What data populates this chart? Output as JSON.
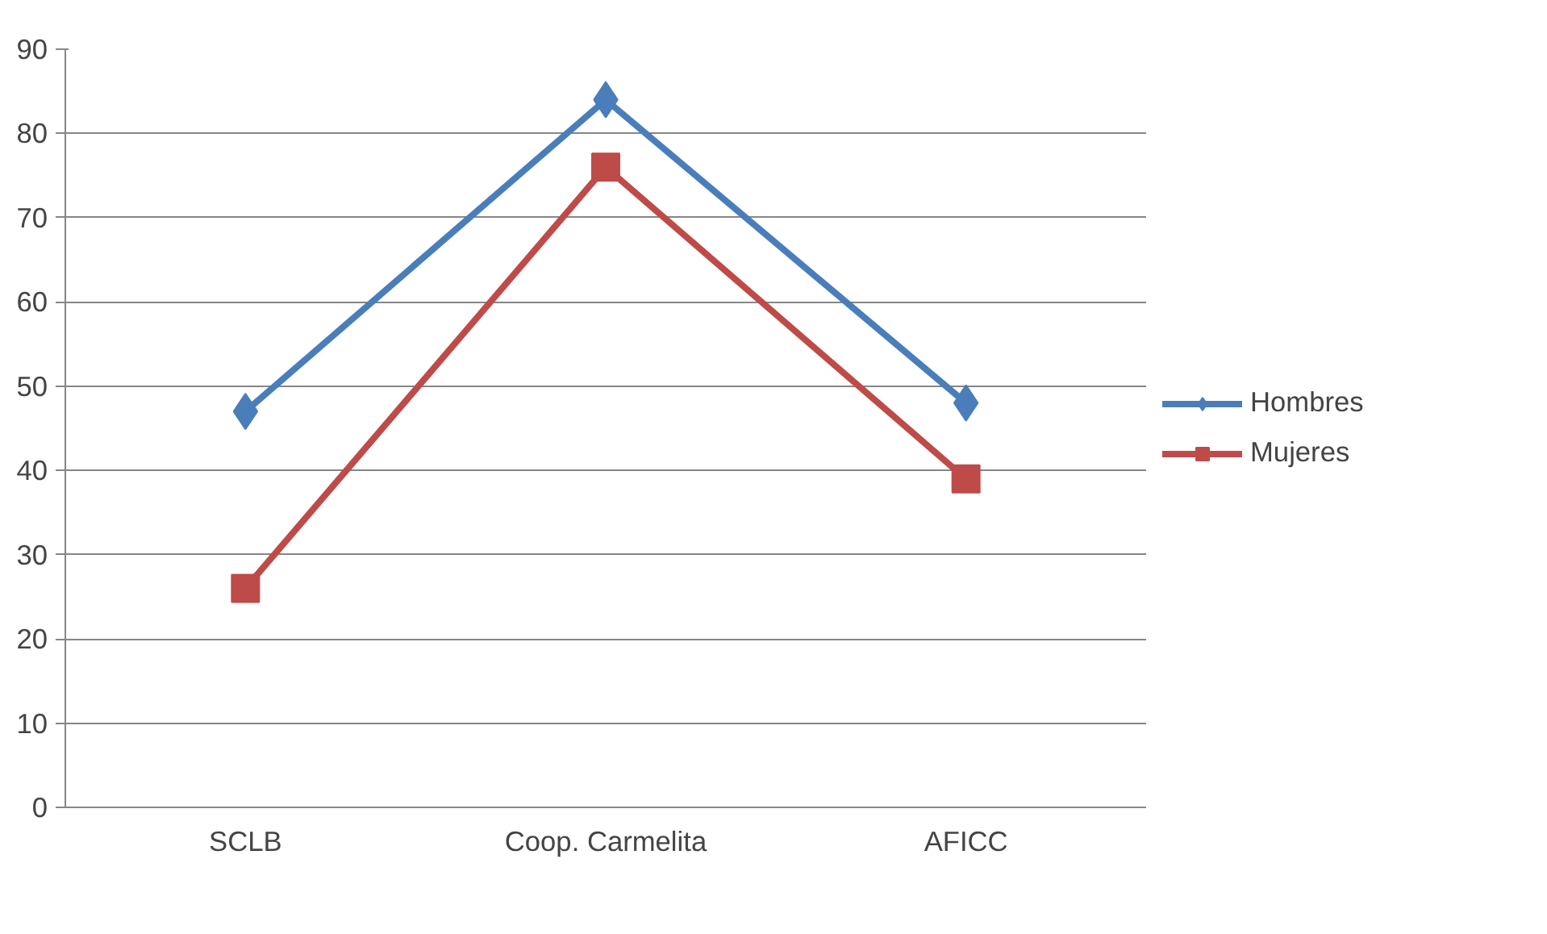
{
  "chart_data": {
    "type": "line",
    "categories": [
      "SCLB",
      "Coop. Carmelita",
      "AFICC"
    ],
    "series": [
      {
        "name": "Hombres",
        "color": "#4a7ebb",
        "values": [
          47,
          84,
          48
        ],
        "marker": "diamond"
      },
      {
        "name": "Mujeres",
        "color": "#be4b48",
        "values": [
          26,
          76,
          39
        ],
        "marker": "square"
      }
    ],
    "ylim": [
      0,
      90
    ],
    "yticks": [
      0,
      10,
      20,
      30,
      40,
      50,
      60,
      70,
      80,
      90
    ],
    "grid": "y",
    "legend": "right",
    "line_style": "solid"
  }
}
